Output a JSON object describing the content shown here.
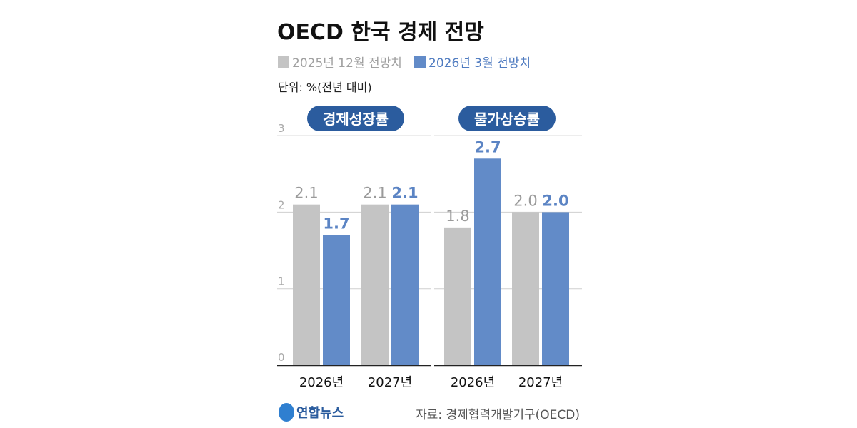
{
  "title": "OECD 한국 경제 전망",
  "unit": "단위: %(전년 대비)",
  "source": "자료: 경제협력개발기구(OECD)",
  "logo_text": "연합뉴스",
  "colors": {
    "old": "#c4c4c4",
    "new": "#628bc8",
    "pill": "#2b5c9e",
    "old_label": "#9a9a9a",
    "new_label": "#5b84c4"
  },
  "chart_data": [
    {
      "type": "bar",
      "title": "경제성장률",
      "categories": [
        "2026년",
        "2027년"
      ],
      "series": [
        {
          "name": "2025년 12월 전망치",
          "values": [
            2.1,
            2.1
          ],
          "labels": [
            "2.1",
            "2.1"
          ]
        },
        {
          "name": "2026년 3월 전망치",
          "values": [
            1.7,
            2.1
          ],
          "labels": [
            "1.7",
            "2.1"
          ]
        }
      ],
      "ylim": [
        0,
        3
      ],
      "yticks": [
        "0",
        "1",
        "2",
        "3"
      ],
      "grid": true,
      "legend": "top-left"
    },
    {
      "type": "bar",
      "title": "물가상승률",
      "categories": [
        "2026년",
        "2027년"
      ],
      "series": [
        {
          "name": "2025년 12월 전망치",
          "values": [
            1.8,
            2.0
          ],
          "labels": [
            "1.8",
            "2.0"
          ]
        },
        {
          "name": "2026년 3월 전망치",
          "values": [
            2.7,
            2.0
          ],
          "labels": [
            "2.7",
            "2.0"
          ]
        }
      ],
      "ylim": [
        0,
        3
      ],
      "grid": true
    }
  ]
}
